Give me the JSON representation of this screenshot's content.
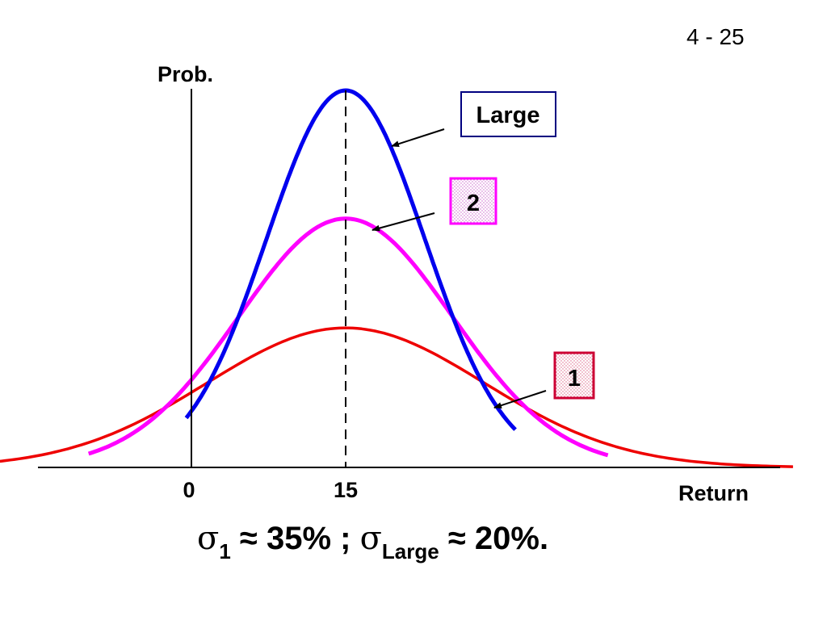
{
  "slide": {
    "page_number": "4 - 25"
  },
  "formula": {
    "sigma_symbol": "σ",
    "sub_1": "1",
    "approx_1": " ≈ 35% ; ",
    "sub_large": "Large",
    "approx_large": " ≈ 20%."
  },
  "chart_data": {
    "type": "line",
    "title": "",
    "ylabel": "Prob.",
    "xlabel": "Return",
    "x_ticks": [
      0,
      15
    ],
    "mean": 15,
    "ylim": [
      0,
      1
    ],
    "grid": false,
    "series": [
      {
        "name": "Large",
        "color": "#0000ee",
        "sigma": 20,
        "peak": 1.0
      },
      {
        "name": "2",
        "color": "#ff00ff",
        "sigma": 27,
        "peak": 0.66
      },
      {
        "name": "1",
        "color": "#ee0000",
        "sigma": 35,
        "peak": 0.37
      }
    ],
    "legend_labels": [
      {
        "text": "Large",
        "series": "Large",
        "border": "#000080",
        "fill": "#ffffff"
      },
      {
        "text": "2",
        "series": "2",
        "border": "#ff00ff",
        "fill": "#f4e6f4"
      },
      {
        "text": "1",
        "series": "1",
        "border": "#cc0033",
        "fill": "#f4e6ec"
      }
    ]
  }
}
